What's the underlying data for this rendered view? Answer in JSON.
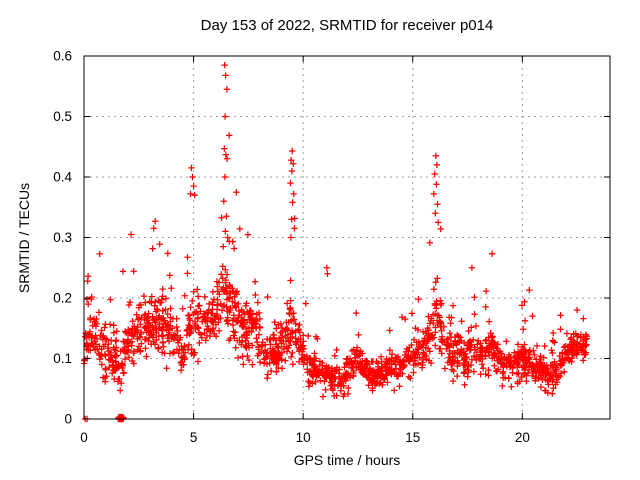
{
  "chart_data": {
    "type": "scatter",
    "title": "Day 153 of 2022, SRMTID for receiver p014",
    "xlabel": "GPS time / hours",
    "ylabel": "SRMTID / TECUs",
    "xlim": [
      0,
      24
    ],
    "ylim": [
      0,
      0.6
    ],
    "xticks": [
      0,
      5,
      10,
      15,
      20
    ],
    "xtick_labels": [
      "0",
      "5",
      "10",
      "15",
      "20"
    ],
    "yticks": [
      0,
      0.1,
      0.2,
      0.3,
      0.4,
      0.5,
      0.6
    ],
    "ytick_labels": [
      "0",
      "0.1",
      "0.2",
      "0.3",
      "0.4",
      "0.5",
      "0.6"
    ],
    "grid": true,
    "legend": "none",
    "marker": "plus",
    "marker_color": "#ff0000",
    "series": [
      {
        "name": "SRMTID",
        "color": "#ff0000"
      }
    ],
    "x_data_start": 0.0,
    "x_data_end": 22.95,
    "envelope_nodes_hour_min_max_typical": [
      [
        0.0,
        0.06,
        0.22,
        0.12
      ],
      [
        0.35,
        0.07,
        0.28,
        0.15
      ],
      [
        0.8,
        0.06,
        0.29,
        0.13
      ],
      [
        1.3,
        0.04,
        0.25,
        0.1
      ],
      [
        1.7,
        0.03,
        0.3,
        0.1
      ],
      [
        2.2,
        0.06,
        0.31,
        0.14
      ],
      [
        2.7,
        0.08,
        0.3,
        0.16
      ],
      [
        3.2,
        0.08,
        0.33,
        0.16
      ],
      [
        3.7,
        0.08,
        0.29,
        0.16
      ],
      [
        4.2,
        0.06,
        0.26,
        0.13
      ],
      [
        4.55,
        0.06,
        0.2,
        0.11
      ],
      [
        4.95,
        0.09,
        0.42,
        0.17
      ],
      [
        5.35,
        0.09,
        0.3,
        0.16
      ],
      [
        5.9,
        0.1,
        0.32,
        0.17
      ],
      [
        6.45,
        0.11,
        0.59,
        0.21
      ],
      [
        6.8,
        0.1,
        0.44,
        0.18
      ],
      [
        7.2,
        0.09,
        0.33,
        0.16
      ],
      [
        7.8,
        0.08,
        0.3,
        0.15
      ],
      [
        8.4,
        0.04,
        0.2,
        0.1
      ],
      [
        9.0,
        0.05,
        0.26,
        0.12
      ],
      [
        9.5,
        0.07,
        0.44,
        0.15
      ],
      [
        10.0,
        0.05,
        0.26,
        0.11
      ],
      [
        10.6,
        0.03,
        0.16,
        0.08
      ],
      [
        11.2,
        0.03,
        0.11,
        0.065
      ],
      [
        11.8,
        0.035,
        0.12,
        0.07
      ],
      [
        12.4,
        0.05,
        0.18,
        0.1
      ],
      [
        13.0,
        0.04,
        0.13,
        0.075
      ],
      [
        13.6,
        0.04,
        0.13,
        0.08
      ],
      [
        14.2,
        0.04,
        0.16,
        0.09
      ],
      [
        14.8,
        0.06,
        0.18,
        0.1
      ],
      [
        15.3,
        0.07,
        0.22,
        0.11
      ],
      [
        15.8,
        0.08,
        0.3,
        0.14
      ],
      [
        16.05,
        0.1,
        0.43,
        0.19
      ],
      [
        16.4,
        0.07,
        0.3,
        0.13
      ],
      [
        16.8,
        0.06,
        0.22,
        0.12
      ],
      [
        17.3,
        0.05,
        0.2,
        0.1
      ],
      [
        17.75,
        0.06,
        0.25,
        0.12
      ],
      [
        18.1,
        0.05,
        0.2,
        0.11
      ],
      [
        18.6,
        0.06,
        0.275,
        0.12
      ],
      [
        19.1,
        0.05,
        0.18,
        0.09
      ],
      [
        19.6,
        0.04,
        0.16,
        0.09
      ],
      [
        20.3,
        0.05,
        0.22,
        0.1
      ],
      [
        20.8,
        0.04,
        0.14,
        0.08
      ],
      [
        21.3,
        0.03,
        0.13,
        0.075
      ],
      [
        21.7,
        0.05,
        0.19,
        0.09
      ],
      [
        22.1,
        0.06,
        0.17,
        0.11
      ],
      [
        22.5,
        0.08,
        0.18,
        0.12
      ],
      [
        22.95,
        0.08,
        0.16,
        0.12
      ]
    ],
    "peak_points": [
      [
        0.05,
        0.0
      ],
      [
        0.14,
        0.0
      ],
      [
        6.42,
        0.585
      ],
      [
        6.46,
        0.568
      ],
      [
        6.52,
        0.545
      ],
      [
        6.44,
        0.5
      ],
      [
        6.4,
        0.447
      ],
      [
        6.47,
        0.437
      ],
      [
        6.53,
        0.43
      ],
      [
        6.43,
        0.4
      ],
      [
        6.38,
        0.36
      ],
      [
        6.5,
        0.335
      ],
      [
        6.45,
        0.31
      ],
      [
        6.55,
        0.3
      ],
      [
        6.35,
        0.285
      ],
      [
        4.9,
        0.415
      ],
      [
        4.95,
        0.4
      ],
      [
        5.0,
        0.385
      ],
      [
        4.86,
        0.372
      ],
      [
        5.05,
        0.37
      ],
      [
        9.5,
        0.443
      ],
      [
        9.45,
        0.428
      ],
      [
        9.55,
        0.422
      ],
      [
        9.48,
        0.41
      ],
      [
        9.42,
        0.39
      ],
      [
        9.57,
        0.372
      ],
      [
        9.52,
        0.358
      ],
      [
        9.47,
        0.33
      ],
      [
        9.6,
        0.315
      ],
      [
        9.44,
        0.3
      ],
      [
        16.05,
        0.435
      ],
      [
        16.1,
        0.42
      ],
      [
        16.0,
        0.405
      ],
      [
        16.08,
        0.388
      ],
      [
        15.96,
        0.372
      ],
      [
        16.13,
        0.355
      ],
      [
        16.03,
        0.34
      ],
      [
        16.16,
        0.325
      ],
      [
        3.25,
        0.327
      ],
      [
        3.18,
        0.315
      ],
      [
        2.15,
        0.305
      ],
      [
        11.08,
        0.25
      ],
      [
        11.11,
        0.24
      ],
      [
        17.7,
        0.25
      ],
      [
        18.62,
        0.273
      ],
      [
        20.32,
        0.213
      ],
      [
        12.42,
        0.175
      ],
      [
        22.5,
        0.18
      ]
    ],
    "zero_cluster": {
      "x_start": 1.56,
      "x_end": 1.8,
      "count": 14,
      "y": 0
    },
    "synth": {
      "seed": 153,
      "n_points": 1750
    }
  },
  "figure": {
    "background": "#ffffff",
    "text_color": "#000000",
    "grid_color": "#9c9c9c",
    "border_color": "#000000"
  }
}
